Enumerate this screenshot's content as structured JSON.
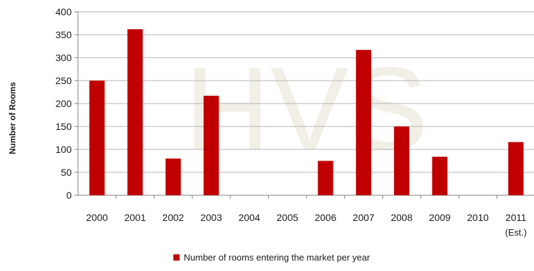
{
  "chart_data": {
    "type": "bar",
    "categories": [
      "2000",
      "2001",
      "2002",
      "2003",
      "2004",
      "2005",
      "2006",
      "2007",
      "2008",
      "2009",
      "2010",
      "2011"
    ],
    "category_sublabels": [
      "",
      "",
      "",
      "",
      "",
      "",
      "",
      "",
      "",
      "",
      "",
      "(Est.)"
    ],
    "series": [
      {
        "name": "Number of rooms entering the market per year",
        "color": "#c00000",
        "values": [
          250,
          362,
          80,
          217,
          0,
          0,
          75,
          317,
          150,
          84,
          0,
          116
        ]
      }
    ],
    "ylabel": "Number of Rooms",
    "xlabel": "",
    "ylim": [
      0,
      400
    ],
    "yticks": [
      0,
      50,
      100,
      150,
      200,
      250,
      300,
      350,
      400
    ],
    "grid": true,
    "legend_position": "bottom",
    "watermark": "HVS",
    "colors": {
      "bar": "#c00000",
      "grid": "#b5b5b5",
      "axis": "#808080",
      "text": "#1a1a1a"
    }
  }
}
